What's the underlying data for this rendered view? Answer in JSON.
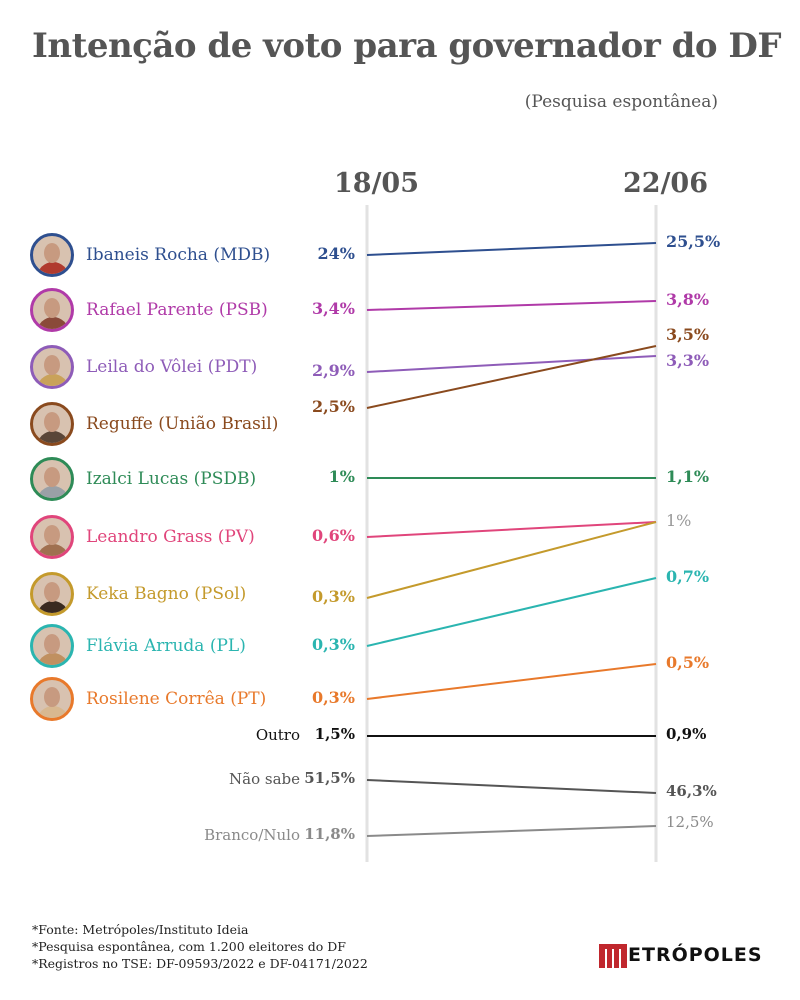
{
  "title": "Intenção de voto para governador do DF",
  "subtitle": "(Pesquisa espontânea)",
  "chart_data": {
    "type": "line",
    "x": [
      "18/05",
      "22/06"
    ],
    "series": [
      {
        "name": "Ibaneis Rocha (MDB)",
        "labels": [
          "24%",
          "25,5%"
        ],
        "values": [
          24,
          25.5
        ],
        "color": "#2e4f8f",
        "avatar_color": "#b03a2e"
      },
      {
        "name": "Rafael Parente (PSB)",
        "labels": [
          "3,4%",
          "3,8%"
        ],
        "values": [
          3.4,
          3.8
        ],
        "color": "#b03aa8",
        "avatar_color": "#8a4a3a"
      },
      {
        "name": "Leila do Vôlei (PDT)",
        "labels": [
          "2,9%",
          "3,3%"
        ],
        "values": [
          2.9,
          3.3
        ],
        "color": "#8e5cb8",
        "avatar_color": "#c9a25a"
      },
      {
        "name": "Reguffe (União Brasil)",
        "labels": [
          "2,5%",
          "3,5%"
        ],
        "values": [
          2.5,
          3.5
        ],
        "color": "#8a4a1e",
        "avatar_color": "#5a4638"
      },
      {
        "name": "Izalci Lucas (PSDB)",
        "labels": [
          "1%",
          "1,1%"
        ],
        "values": [
          1,
          1.1
        ],
        "color": "#2e8b57",
        "avatar_color": "#9aa0a6"
      },
      {
        "name": "Leandro Grass (PV)",
        "labels": [
          "0,6%",
          "1%"
        ],
        "values": [
          0.6,
          1
        ],
        "color": "#e0457b",
        "avatar_color": "#a07050"
      },
      {
        "name": "Keka Bagno (PSol)",
        "labels": [
          "0,3%",
          "1%"
        ],
        "values": [
          0.3,
          1
        ],
        "color": "#c49a2c",
        "avatar_color": "#3a2a20"
      },
      {
        "name": "Flávia Arruda (PL)",
        "labels": [
          "0,3%",
          "0,7%"
        ],
        "values": [
          0.3,
          0.7
        ],
        "color": "#2bb5b0",
        "avatar_color": "#c09060"
      },
      {
        "name": "Rosilene Corrêa (PT)",
        "labels": [
          "0,3%",
          "0,5%"
        ],
        "values": [
          0.3,
          0.5
        ],
        "color": "#e8792b",
        "avatar_color": "#d8b890"
      }
    ],
    "others": [
      {
        "name": "Outro",
        "labels": [
          "1,5%",
          "0,9%"
        ],
        "values": [
          1.5,
          0.9
        ],
        "color": "#111111"
      },
      {
        "name": "Não sabe",
        "labels": [
          "51,5%",
          "46,3%"
        ],
        "values": [
          51.5,
          46.3
        ],
        "color": "#555555"
      },
      {
        "name": "Branco/Nulo",
        "labels": [
          "11,8%",
          "12,5%"
        ],
        "values": [
          11.8,
          12.5
        ],
        "color": "#8a8a8a"
      }
    ]
  },
  "footer": {
    "lines": [
      "*Fonte: Metrópoles/Instituto Ideia",
      "*Pesquisa espontânea, com 1.200 eleitores do DF",
      "*Registros no TSE: DF-09593/2022 e DF-04171/2022"
    ]
  },
  "logo": {
    "text": "ETRÓPOLES",
    "color": "#c0272d"
  }
}
